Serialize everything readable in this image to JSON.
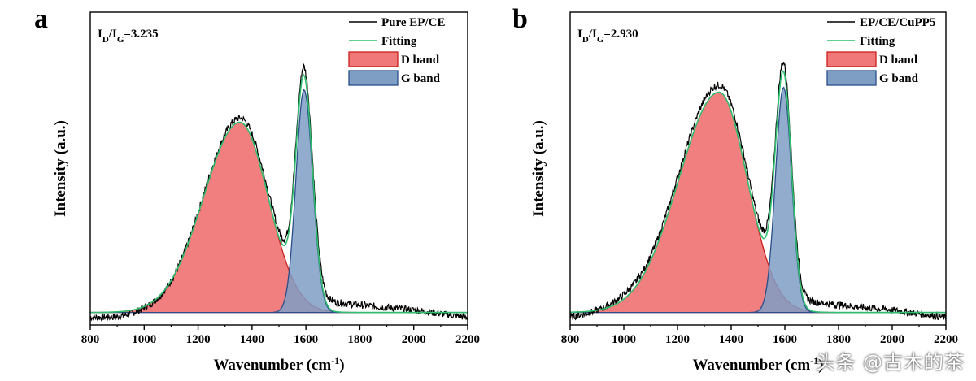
{
  "colors": {
    "raw": "#000000",
    "fitting": "#2fbf6f",
    "d_band_fill": "#f07878",
    "d_band_stroke": "#cc1f1f",
    "g_band_fill": "#7f9ec4",
    "g_band_stroke": "#2a4f8a",
    "axis": "#000000"
  },
  "watermark": "头条 @古木的茶",
  "chart_data": [
    {
      "type": "line",
      "panel_label": "a",
      "ratio_label": {
        "main": "I",
        "sub1": "D",
        "slash": "/I",
        "sub2": "G",
        "value": "=3.235"
      },
      "xlabel": "Wavenumber (cm",
      "xlabel_sup": "-1",
      "xlabel_close": ")",
      "ylabel": "Intensity (a.u.)",
      "xlim": [
        800,
        2200
      ],
      "ylim": [
        -0.05,
        1.2
      ],
      "xticks": [
        800,
        1000,
        1200,
        1400,
        1600,
        1800,
        2000,
        2200
      ],
      "legend_position": "top-right",
      "legend": [
        "Pure EP/CE",
        "Fitting",
        "D band",
        "G band"
      ],
      "series": [
        {
          "name": "D band",
          "shape": "gaussian",
          "center": 1355,
          "height": 0.76,
          "sigma_left": 135,
          "sigma_right": 105
        },
        {
          "name": "G band",
          "shape": "gaussian",
          "center": 1593,
          "height": 0.89,
          "sigma_left": 30,
          "sigma_right": 32
        },
        {
          "name": "Fitting",
          "shape": "sum of D band and G band"
        },
        {
          "name": "Pure EP/CE",
          "shape": "raw spectrum",
          "baseline_points": [
            [
              800,
              -0.02
            ],
            [
              900,
              -0.02
            ],
            [
              1000,
              -0.005
            ],
            [
              1100,
              0.0
            ],
            [
              1700,
              0.04
            ],
            [
              1800,
              0.03
            ],
            [
              1900,
              0.02
            ],
            [
              2000,
              0.01
            ],
            [
              2100,
              -0.005
            ],
            [
              2200,
              -0.02
            ]
          ]
        }
      ]
    },
    {
      "type": "line",
      "panel_label": "b",
      "ratio_label": {
        "main": "I",
        "sub1": "D",
        "slash": "/I",
        "sub2": "G",
        "value": "=2.930"
      },
      "xlabel": "Wavenumber (cm",
      "xlabel_sup": "-1",
      "xlabel_close": ")",
      "ylabel": "Intensity (a.u.)",
      "xlim": [
        800,
        2200
      ],
      "ylim": [
        -0.05,
        1.2
      ],
      "xticks": [
        800,
        1000,
        1200,
        1400,
        1600,
        1800,
        2000,
        2200
      ],
      "legend_position": "top-right",
      "legend": [
        "EP/CE/CuPP5",
        "Fitting",
        "D band",
        "G band"
      ],
      "series": [
        {
          "name": "D band",
          "shape": "gaussian",
          "center": 1355,
          "height": 0.88,
          "sigma_left": 150,
          "sigma_right": 105
        },
        {
          "name": "G band",
          "shape": "gaussian",
          "center": 1595,
          "height": 0.9,
          "sigma_left": 30,
          "sigma_right": 30
        },
        {
          "name": "Fitting",
          "shape": "sum of D band and G band"
        },
        {
          "name": "EP/CE/CuPP5",
          "shape": "raw spectrum",
          "baseline_points": [
            [
              800,
              -0.02
            ],
            [
              900,
              0.0
            ],
            [
              1000,
              0.02
            ],
            [
              1100,
              0.02
            ],
            [
              1700,
              0.04
            ],
            [
              1800,
              0.03
            ],
            [
              1900,
              0.02
            ],
            [
              2000,
              0.01
            ],
            [
              2100,
              -0.005
            ],
            [
              2200,
              -0.02
            ]
          ]
        }
      ]
    }
  ]
}
